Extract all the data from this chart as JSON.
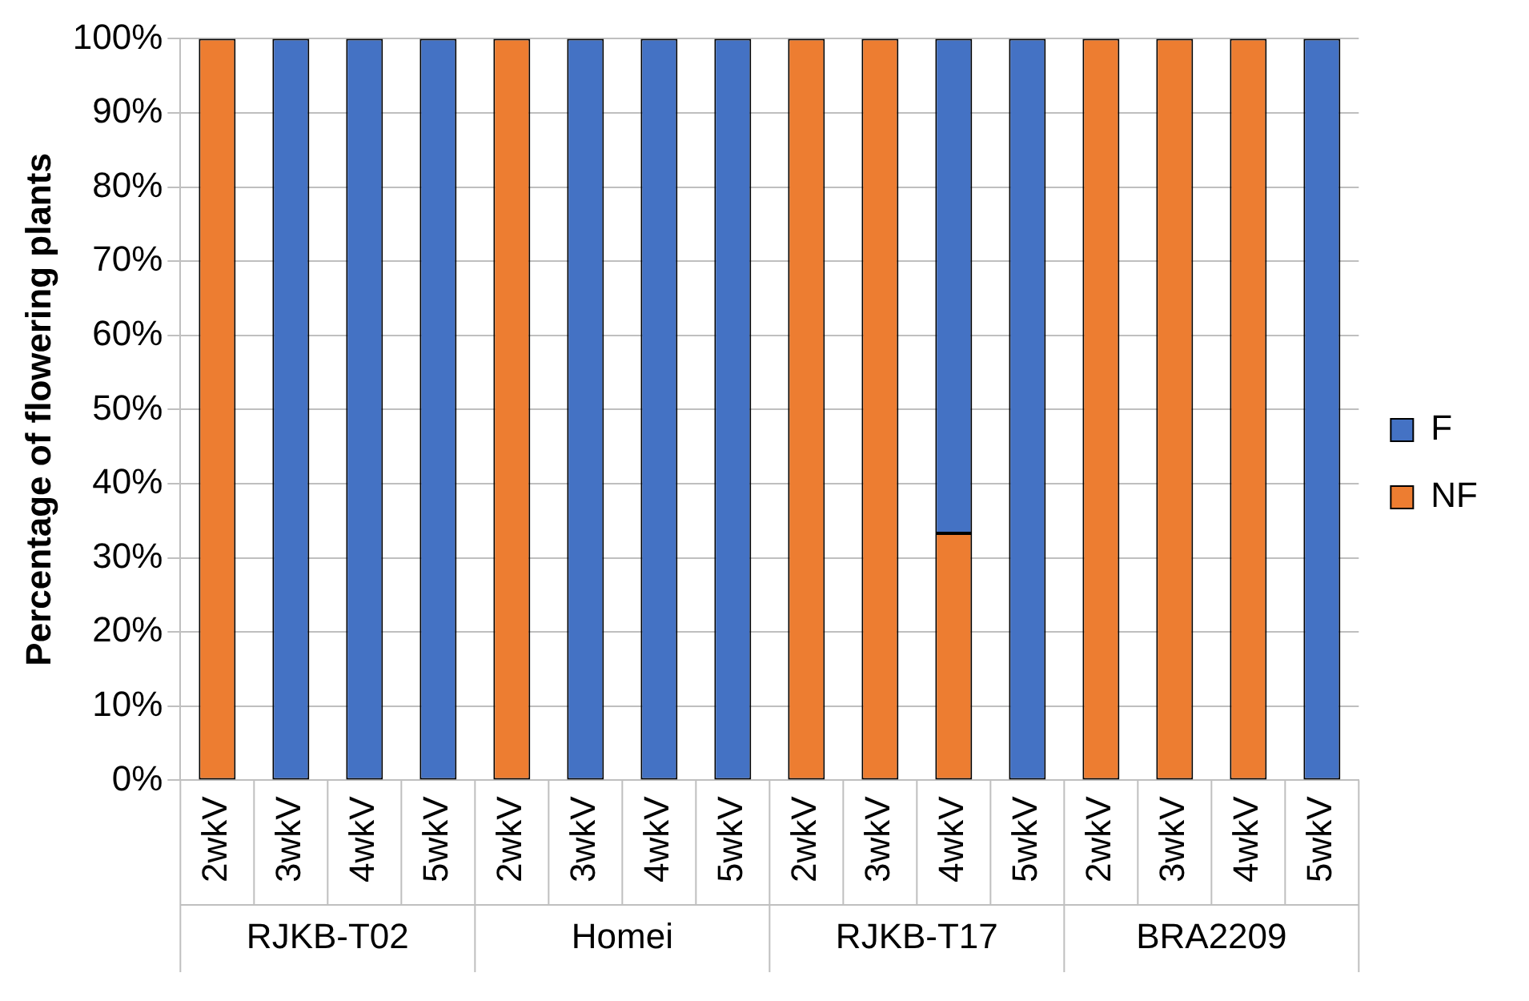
{
  "chart_data": {
    "type": "bar",
    "stacked": true,
    "ylabel": "Percentage of flowering plants",
    "categories": [
      "2wkV",
      "3wkV",
      "4wkV",
      "5wkV",
      "2wkV",
      "3wkV",
      "4wkV",
      "5wkV",
      "2wkV",
      "3wkV",
      "4wkV",
      "5wkV",
      "2wkV",
      "3wkV",
      "4wkV",
      "5wkV"
    ],
    "series": [
      {
        "name": "NF",
        "color": "#ed7d31",
        "values": [
          100,
          0,
          0,
          0,
          100,
          0,
          0,
          0,
          100,
          100,
          33.3,
          0,
          100,
          100,
          100,
          0
        ]
      },
      {
        "name": "F",
        "color": "#4472c4",
        "values": [
          0,
          100,
          100,
          100,
          0,
          100,
          100,
          100,
          0,
          0,
          66.7,
          100,
          0,
          0,
          0,
          100
        ]
      }
    ],
    "ylim": [
      0,
      100
    ],
    "yticks": [
      {
        "value": 0,
        "label": "0%"
      },
      {
        "value": 10,
        "label": "10%"
      },
      {
        "value": 20,
        "label": "20%"
      },
      {
        "value": 30,
        "label": "30%"
      },
      {
        "value": 40,
        "label": "40%"
      },
      {
        "value": 50,
        "label": "50%"
      },
      {
        "value": 60,
        "label": "60%"
      },
      {
        "value": 70,
        "label": "70%"
      },
      {
        "value": 80,
        "label": "80%"
      },
      {
        "value": 90,
        "label": "90%"
      },
      {
        "value": 100,
        "label": "100%"
      }
    ],
    "grid": "y",
    "legend": "right",
    "annotations": [
      "RJKB-T02",
      "Homei",
      "RJKB-T17",
      "BRA2209"
    ]
  }
}
